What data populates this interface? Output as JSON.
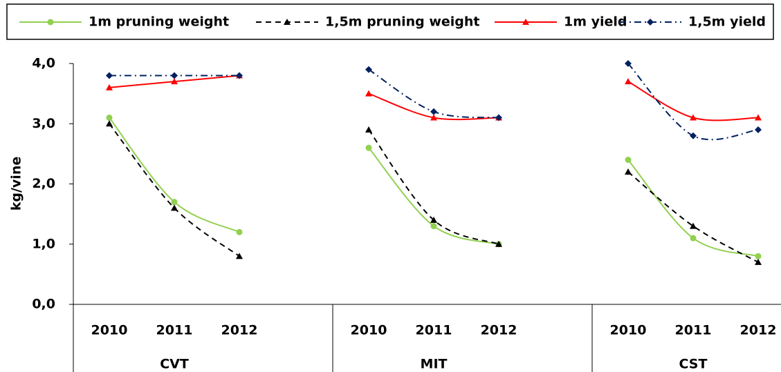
{
  "chart_data": {
    "type": "line",
    "y_label": "kg/vine",
    "groups": [
      "CVT",
      "MIT",
      "CST"
    ],
    "categories": [
      "2010",
      "2011",
      "2012",
      "2010",
      "2011",
      "2012",
      "2010",
      "2011",
      "2012"
    ],
    "ylim": [
      0,
      4
    ],
    "yticks": [
      {
        "value": 0,
        "label": "0,0"
      },
      {
        "value": 1,
        "label": "1,0"
      },
      {
        "value": 2,
        "label": "2,0"
      },
      {
        "value": 3,
        "label": "3,0"
      },
      {
        "value": 4,
        "label": "4,0"
      }
    ],
    "legend": "top",
    "smooth": true,
    "series": [
      {
        "name": "1m pruning weight",
        "color": "#92d050",
        "marker": "circle",
        "dash": "solid",
        "values": [
          3.1,
          1.7,
          1.2,
          2.6,
          1.3,
          1.0,
          2.4,
          1.1,
          0.8
        ]
      },
      {
        "name": "1,5m pruning weight",
        "color": "#000000",
        "marker": "triangle",
        "dash": "dash",
        "values": [
          3.0,
          1.6,
          0.8,
          2.9,
          1.4,
          1.0,
          2.2,
          1.3,
          0.7
        ]
      },
      {
        "name": "1m yield",
        "color": "#ff0000",
        "marker": "triangle",
        "dash": "solid",
        "values": [
          3.6,
          3.7,
          3.8,
          3.5,
          3.1,
          3.1,
          3.7,
          3.1,
          3.1
        ]
      },
      {
        "name": "1,5m yield",
        "color": "#002060",
        "marker": "diamond",
        "dash": "dashdot",
        "values": [
          3.8,
          3.8,
          3.8,
          3.9,
          3.2,
          3.1,
          4.0,
          2.8,
          2.9
        ]
      }
    ]
  }
}
